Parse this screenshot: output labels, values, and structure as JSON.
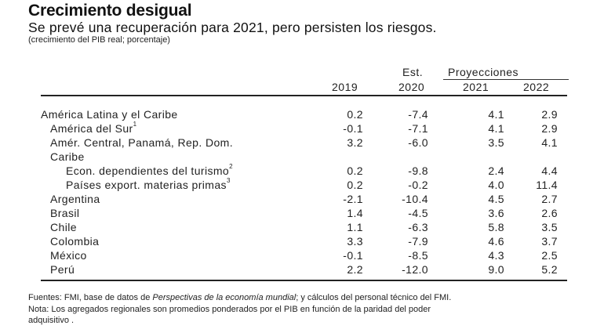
{
  "title": "Crecimiento desigual",
  "subtitle": "Se prevé una recuperación para 2021, pero persisten los riesgos.",
  "unit_note": "(crecimiento del PIB real; porcentaje)",
  "header": {
    "est": "Est.",
    "proyecciones": "Proyecciones",
    "years": [
      "2019",
      "2020",
      "2021",
      "2022"
    ]
  },
  "rows": [
    {
      "label": "América Latina y el Caribe",
      "sup": "",
      "values": [
        "0.2",
        "-7.4",
        "4.1",
        "2.9"
      ]
    },
    {
      "label": "América del Sur",
      "sup": "1",
      "values": [
        "-0.1",
        "-7.1",
        "4.1",
        "2.9"
      ]
    },
    {
      "label": "Amér. Central, Panamá, Rep. Dom.",
      "sup": "",
      "values": [
        "3.2",
        "-6.0",
        "3.5",
        "4.1"
      ]
    },
    {
      "label": "Caribe",
      "sup": "",
      "values": [
        "",
        "",
        "",
        ""
      ]
    },
    {
      "label": "Econ. dependientes del turismo",
      "sup": "2",
      "values": [
        "0.2",
        "-9.8",
        "2.4",
        "4.4"
      ]
    },
    {
      "label": "Países export. materias primas",
      "sup": "3",
      "values": [
        "0.2",
        "-0.2",
        "4.0",
        "11.4"
      ]
    },
    {
      "label": "Argentina",
      "sup": "",
      "values": [
        "-2.1",
        "-10.4",
        "4.5",
        "2.7"
      ]
    },
    {
      "label": "Brasil",
      "sup": "",
      "values": [
        "1.4",
        "-4.5",
        "3.6",
        "2.6"
      ]
    },
    {
      "label": "Chile",
      "sup": "",
      "values": [
        "1.1",
        "-6.3",
        "5.8",
        "3.5"
      ]
    },
    {
      "label": "Colombia",
      "sup": "",
      "values": [
        "3.3",
        "-7.9",
        "4.6",
        "3.7"
      ]
    },
    {
      "label": "México",
      "sup": "",
      "values": [
        "-0.1",
        "-8.5",
        "4.3",
        "2.5"
      ]
    },
    {
      "label": "Perú",
      "sup": "",
      "values": [
        "2.2",
        "-12.0",
        "9.0",
        "5.2"
      ]
    }
  ],
  "footer": {
    "sources_prefix": "Fuentes: FMI, base de datos de ",
    "sources_italic": "Perspectivas de la economía mundial",
    "sources_suffix": "; y cálculos del personal técnico del FMI.",
    "note_line1": "Nota: Los agregados regionales son promedios ponderados por el PIB en función de la paridad del poder",
    "note_line2": "adquisitivo ."
  }
}
